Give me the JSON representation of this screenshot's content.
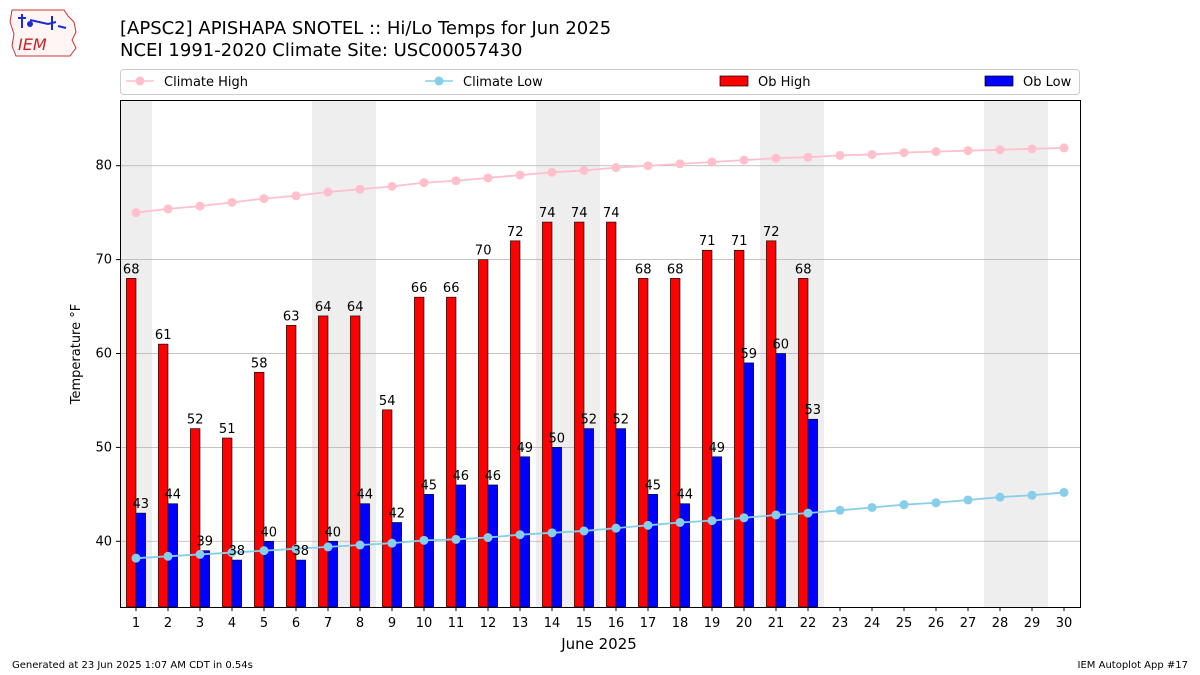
{
  "header": {
    "title": "[APSC2] APISHAPA SNOTEL :: Hi/Lo Temps for Jun 2025",
    "subtitle": "NCEI 1991-2020 Climate Site: USC00057430"
  },
  "logo": {
    "text": "IEM",
    "icon": "iowa-map-weather-logo"
  },
  "footer": {
    "left": "Generated at 23 Jun 2025 1:07 AM CDT in 0.54s",
    "right": "IEM Autoplot App #17"
  },
  "colors": {
    "climate_high": "#ffc0cb",
    "climate_low": "#87ceeb",
    "ob_high": "#ff0000",
    "ob_low": "#0000ff",
    "weekend_shade": "#eeeeee"
  },
  "chart_data": {
    "type": "bar",
    "xlabel": "June 2025",
    "ylabel": "Temperature °F",
    "ylim": [
      33,
      87
    ],
    "yticks": [
      40,
      50,
      60,
      70,
      80
    ],
    "x": [
      1,
      2,
      3,
      4,
      5,
      6,
      7,
      8,
      9,
      10,
      11,
      12,
      13,
      14,
      15,
      16,
      17,
      18,
      19,
      20,
      21,
      22,
      23,
      24,
      25,
      26,
      27,
      28,
      29,
      30
    ],
    "grid": "y",
    "legend_position": "top",
    "weekend_days": [
      1,
      7,
      8,
      14,
      15,
      21,
      22,
      28,
      29
    ],
    "series": [
      {
        "name": "Climate High",
        "kind": "line",
        "values": [
          75.0,
          75.4,
          75.7,
          76.1,
          76.5,
          76.8,
          77.2,
          77.5,
          77.8,
          78.2,
          78.4,
          78.7,
          79.0,
          79.3,
          79.5,
          79.8,
          80.0,
          80.2,
          80.4,
          80.6,
          80.8,
          80.9,
          81.1,
          81.2,
          81.4,
          81.5,
          81.6,
          81.7,
          81.8,
          81.9
        ]
      },
      {
        "name": "Climate Low",
        "kind": "line",
        "values": [
          38.2,
          38.4,
          38.6,
          38.8,
          39.0,
          39.2,
          39.4,
          39.6,
          39.8,
          40.1,
          40.2,
          40.4,
          40.7,
          40.9,
          41.1,
          41.4,
          41.7,
          42.0,
          42.2,
          42.5,
          42.8,
          43.0,
          43.3,
          43.6,
          43.9,
          44.1,
          44.4,
          44.7,
          44.9,
          45.2
        ]
      },
      {
        "name": "Ob High",
        "kind": "bar",
        "values": [
          68,
          61,
          52,
          51,
          58,
          63,
          64,
          64,
          54,
          66,
          66,
          70,
          72,
          74,
          74,
          74,
          68,
          68,
          71,
          71,
          72,
          68,
          null,
          null,
          null,
          null,
          null,
          null,
          null,
          null
        ]
      },
      {
        "name": "Ob Low",
        "kind": "bar",
        "values": [
          43,
          44,
          39,
          38,
          40,
          38,
          40,
          44,
          42,
          45,
          46,
          46,
          49,
          50,
          52,
          52,
          45,
          44,
          49,
          59,
          60,
          53,
          null,
          null,
          null,
          null,
          null,
          null,
          null,
          null
        ]
      }
    ]
  }
}
